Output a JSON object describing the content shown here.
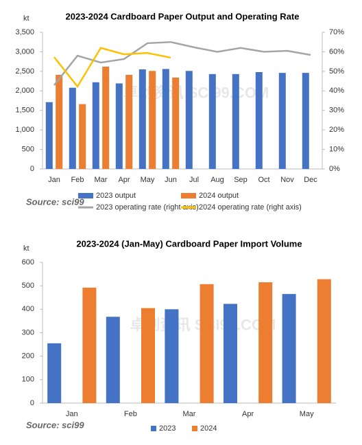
{
  "chart_data": [
    {
      "type": "combo",
      "title": "2023-2024 Cardboard Paper Output and Operating Rate",
      "y_label": "kt",
      "source": "Source: sci99",
      "watermark": "卓创资讯 SCI99.COM",
      "categories": [
        "Jan",
        "Feb",
        "Mar",
        "Apr",
        "May",
        "Jun",
        "Jul",
        "Aug",
        "Sep",
        "Oct",
        "Nov",
        "Dec"
      ],
      "series": [
        {
          "name": "2023 output",
          "type": "bar",
          "color": "#4472c4",
          "values": [
            1710,
            2080,
            2220,
            2190,
            2550,
            2560,
            2510,
            2430,
            2430,
            2480,
            2460,
            2460
          ]
        },
        {
          "name": "2024 output",
          "type": "bar",
          "color": "#ed7d31",
          "values": [
            2410,
            1660,
            2620,
            2410,
            2510,
            2340,
            null,
            null,
            null,
            null,
            null,
            null
          ]
        },
        {
          "name": "2023 operating rate (right axis)",
          "type": "line",
          "axis": "y2",
          "color": "#a5a5a5",
          "values": [
            42.9,
            58,
            54.5,
            56.3,
            64.4,
            65,
            62.3,
            60,
            62,
            60,
            60.5,
            58.4
          ]
        },
        {
          "name": "2024 operating rate (right axis)",
          "type": "line",
          "axis": "y2",
          "color": "#ffc000",
          "values": [
            57.3,
            42.2,
            62,
            58.7,
            59.4,
            57,
            null,
            null,
            null,
            null,
            null,
            null
          ]
        }
      ],
      "ylim": [
        0,
        3500
      ],
      "yticks": [
        0,
        500,
        {
          "value": 1000,
          "label": "1,000"
        },
        {
          "value": 1500,
          "label": "1,500"
        },
        {
          "value": 2000,
          "label": "2,000"
        },
        {
          "value": 2500,
          "label": "2,500"
        },
        {
          "value": 3000,
          "label": "3,000"
        },
        {
          "value": 3500,
          "label": "3,500"
        }
      ],
      "y2lim": [
        0,
        70
      ],
      "y2ticks": [
        {
          "value": 0,
          "label": "0%"
        },
        {
          "value": 10,
          "label": "10%"
        },
        {
          "value": 20,
          "label": "20%"
        },
        {
          "value": 30,
          "label": "30%"
        },
        {
          "value": 40,
          "label": "40%"
        },
        {
          "value": 50,
          "label": "50%"
        },
        {
          "value": 60,
          "label": "60%"
        },
        {
          "value": 70,
          "label": "70%"
        }
      ],
      "grid": false
    },
    {
      "type": "bar",
      "title": "2023-2024 (Jan-May) Cardboard Paper Import Volume",
      "y_label": "kt",
      "source": "Source: sci99",
      "watermark": "卓创资讯 SCI99.COM",
      "categories": [
        "Jan",
        "Feb",
        "Mar",
        "Apr",
        "May"
      ],
      "series": [
        {
          "name": "2023",
          "type": "bar",
          "color": "#4472c4",
          "values": [
            255,
            368,
            400,
            423,
            465
          ]
        },
        {
          "name": "2024",
          "type": "bar",
          "color": "#ed7d31",
          "values": [
            492,
            405,
            507,
            515,
            528
          ]
        }
      ],
      "ylim": [
        0,
        600
      ],
      "yticks": [
        0,
        100,
        200,
        300,
        400,
        500,
        600
      ],
      "grid": false
    }
  ]
}
